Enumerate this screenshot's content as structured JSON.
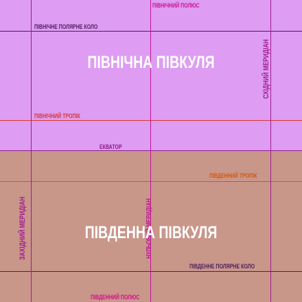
{
  "hemispheres": {
    "north": "ПІВНІЧНА ПІВКУЛЯ",
    "south": "ПІВДЕННА ПІВКУЛЯ"
  },
  "lines": {
    "north_pole": "ПІВНІЧНИЙ ПОЛЮС",
    "arctic_circle": "ПІВНІЧНЕ ПОЛЯРНЕ КОЛО",
    "tropic_cancer": "ПІВНІЧНИЙ ТРОПІК",
    "equator": "ЕКВАТОР",
    "tropic_capricorn": "ПІВДЕННИЙ ТРОПІК",
    "antarctic_circle": "ПІВДЕННЕ ПОЛЯРНЕ КОЛО",
    "south_pole": "ПІВДЕННИЙ ПОЛЮС",
    "eastern_meridian": "СХІДНИЙ МЕРИДІАН",
    "western_meridian": "ЗАХІДНИЙ МЕРИДІАН",
    "prime_meridian": "НУЛЬОВИЙ МЕРИДІАН"
  },
  "colors": {
    "north_fill": "#de9cf3",
    "south_fill": "#c9968a",
    "pole_line": "#d0108a",
    "circle_line": "#4a1e5e",
    "tropic_line": "#d9382a",
    "equator_line": "#8b1e8a",
    "tropic_south_line": "#d4580c",
    "meridian_line": "#a01a90"
  }
}
